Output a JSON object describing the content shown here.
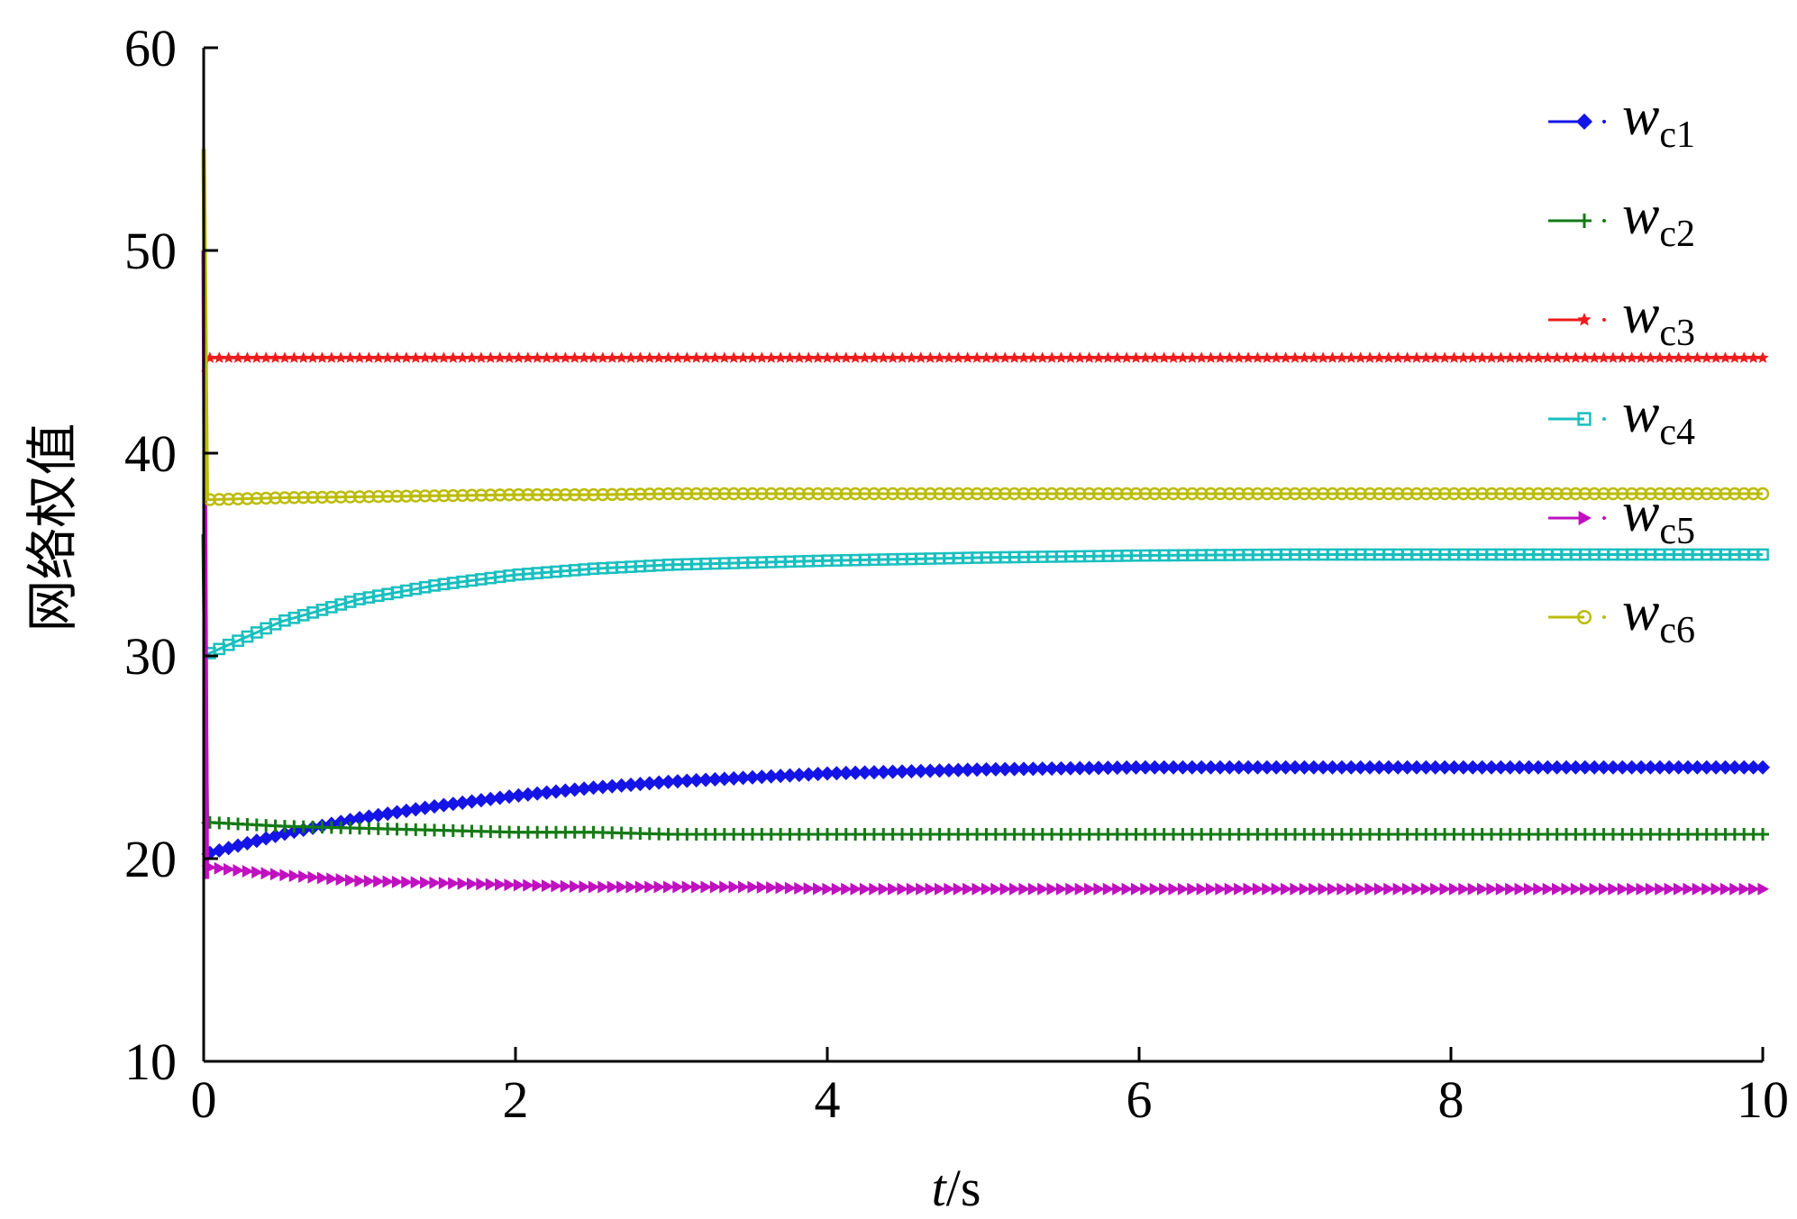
{
  "chart_data": {
    "type": "line",
    "xlabel": "t/s",
    "xlabel_italic": "t",
    "xlabel_rest": "/s",
    "ylabel": "网络权值",
    "xlim": [
      0,
      10
    ],
    "ylim": [
      10,
      60
    ],
    "xticks": [
      0,
      2,
      4,
      6,
      8,
      10
    ],
    "yticks": [
      10,
      20,
      30,
      40,
      50,
      60
    ],
    "xtick_labels": [
      "0",
      "2",
      "4",
      "6",
      "8",
      "10"
    ],
    "ytick_labels": [
      "10",
      "20",
      "30",
      "40",
      "50",
      "60"
    ],
    "grid": false,
    "legend_position": "top-right",
    "x": [
      0,
      0.5,
      1,
      1.5,
      2,
      2.5,
      3,
      3.5,
      4,
      5,
      6,
      7,
      8,
      9,
      10
    ],
    "series": [
      {
        "name": "wc1",
        "name_main": "w",
        "name_sub": "c1",
        "color": "#1414e6",
        "marker": "diamond",
        "initial": [
          20,
          20
        ],
        "values": [
          20.2,
          21.2,
          22.0,
          22.6,
          23.1,
          23.5,
          23.8,
          24.0,
          24.2,
          24.4,
          24.5,
          24.5,
          24.5,
          24.5,
          24.5
        ]
      },
      {
        "name": "wc2",
        "name_main": "w",
        "name_sub": "c2",
        "color": "#147a14",
        "marker": "plus",
        "initial": [
          36,
          22
        ],
        "values": [
          21.8,
          21.6,
          21.5,
          21.4,
          21.3,
          21.3,
          21.2,
          21.2,
          21.2,
          21.2,
          21.2,
          21.2,
          21.2,
          21.2,
          21.2
        ]
      },
      {
        "name": "wc3",
        "name_main": "w",
        "name_sub": "c3",
        "color": "#ee1c1c",
        "marker": "star",
        "initial": [
          44,
          44.7
        ],
        "values": [
          44.7,
          44.7,
          44.7,
          44.7,
          44.7,
          44.7,
          44.7,
          44.7,
          44.7,
          44.7,
          44.7,
          44.7,
          44.7,
          44.7,
          44.7
        ]
      },
      {
        "name": "wc4",
        "name_main": "w",
        "name_sub": "c4",
        "color": "#19bfbf",
        "marker": "square",
        "initial": [
          30,
          30
        ],
        "values": [
          30.0,
          31.7,
          32.8,
          33.5,
          34.0,
          34.3,
          34.5,
          34.6,
          34.7,
          34.85,
          34.95,
          35.0,
          35.0,
          35.0,
          35.0
        ]
      },
      {
        "name": "wc5",
        "name_main": "w",
        "name_sub": "c5",
        "color": "#c010c0",
        "marker": "triangle-right",
        "initial": [
          50,
          19
        ],
        "values": [
          19.6,
          19.2,
          18.9,
          18.8,
          18.7,
          18.6,
          18.6,
          18.6,
          18.5,
          18.5,
          18.5,
          18.5,
          18.5,
          18.5,
          18.5
        ]
      },
      {
        "name": "wc6",
        "name_main": "w",
        "name_sub": "c6",
        "color": "#bcbc0a",
        "marker": "circle",
        "initial": [
          55,
          37.7
        ],
        "values": [
          37.7,
          37.8,
          37.85,
          37.9,
          37.95,
          37.95,
          38.0,
          38.0,
          38.0,
          38.0,
          38.0,
          38.0,
          38.0,
          38.0,
          38.0
        ]
      }
    ]
  }
}
